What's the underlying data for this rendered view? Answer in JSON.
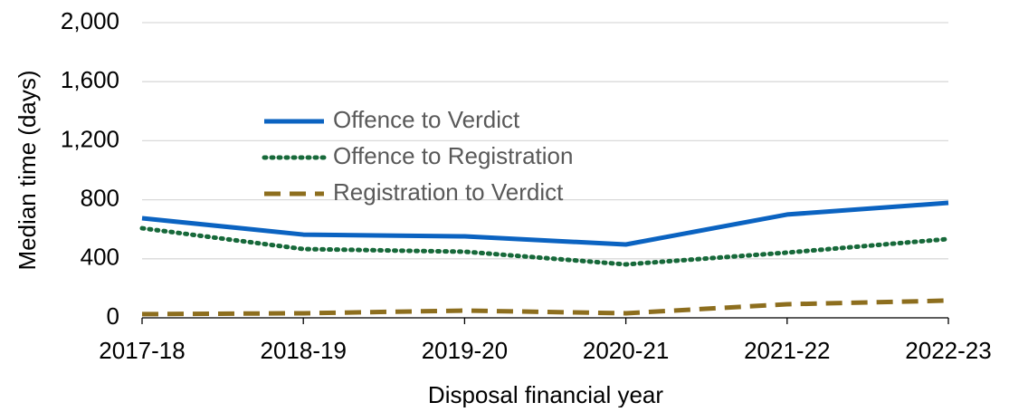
{
  "chart_data": {
    "type": "line",
    "x_label": "Disposal financial year",
    "y_label": "Median time (days)",
    "categories": [
      "2017-18",
      "2018-19",
      "2019-20",
      "2020-21",
      "2021-22",
      "2022-23"
    ],
    "series": [
      {
        "name": "Offence to Verdict",
        "color": "#0b63c1",
        "style": "solid",
        "values": [
          675,
          564,
          552,
          497,
          700,
          779
        ]
      },
      {
        "name": "Offence to Registration",
        "color": "#17693a",
        "style": "dotted",
        "values": [
          607,
          466,
          448,
          362,
          442,
          534
        ]
      },
      {
        "name": "Registration to Verdict",
        "color": "#8d6e1e",
        "style": "dashed",
        "values": [
          25,
          31,
          49,
          31,
          92,
          117
        ]
      }
    ],
    "ylim": [
      0,
      2000
    ],
    "yticks": [
      0,
      400,
      800,
      {
        "value": 1200,
        "label": "1,200"
      },
      {
        "value": 1600,
        "label": "1,600"
      },
      {
        "value": 2000,
        "label": "2,000"
      }
    ],
    "grid": true,
    "legend": "inside"
  }
}
